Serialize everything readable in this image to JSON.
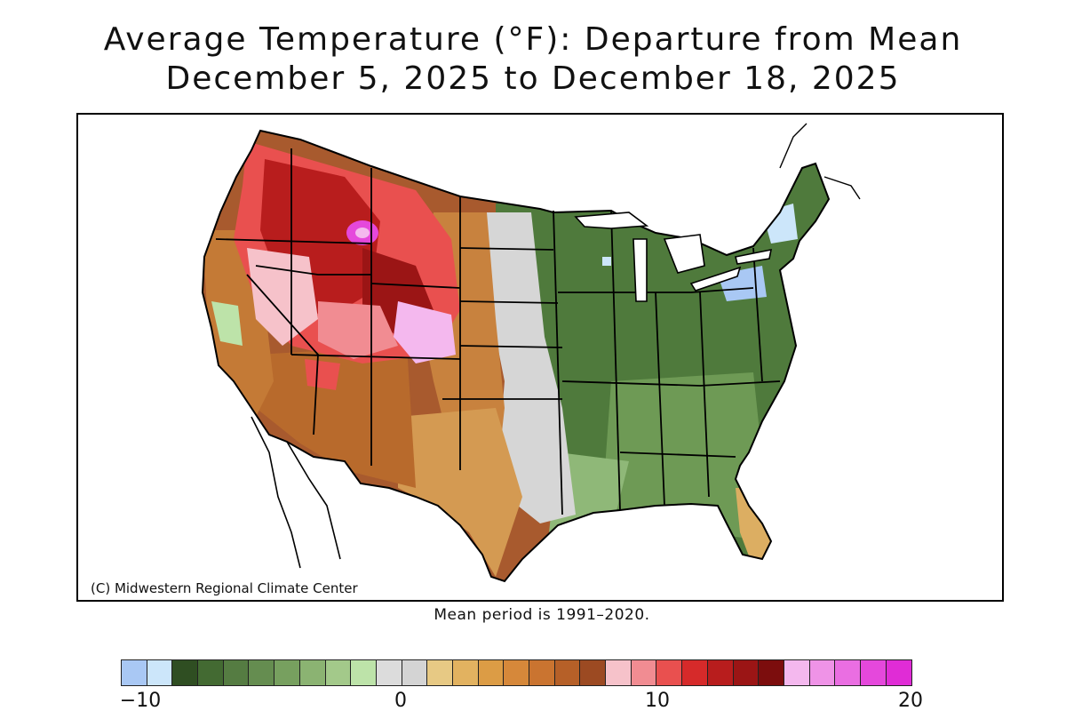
{
  "title": {
    "line1": "Average Temperature (°F): Departure from Mean",
    "line2": "December 5, 2025 to December 18, 2025"
  },
  "map": {
    "credit": "(C) Midwestern Regional Climate Center",
    "regions": [
      {
        "name": "northern-rockies-idaho-montana",
        "departure_f": 14
      },
      {
        "name": "yellowstone-hotspot",
        "departure_f": 19
      },
      {
        "name": "wyoming-core",
        "departure_f": 15
      },
      {
        "name": "utah-colorado",
        "departure_f": 11
      },
      {
        "name": "nevada-east",
        "departure_f": 10
      },
      {
        "name": "pacific-coast",
        "departure_f": 5
      },
      {
        "name": "desert-southwest",
        "departure_f": 6
      },
      {
        "name": "plains",
        "departure_f": 4
      },
      {
        "name": "texas",
        "departure_f": 3
      },
      {
        "name": "mississippi-valley",
        "departure_f": 0
      },
      {
        "name": "great-lakes-ohio-valley",
        "departure_f": -7
      },
      {
        "name": "southeast",
        "departure_f": -5
      },
      {
        "name": "northeast",
        "departure_f": -8
      },
      {
        "name": "lake-erie-ny",
        "departure_f": -10
      },
      {
        "name": "florida",
        "departure_f": 4
      }
    ]
  },
  "note": "Mean period is 1991–2020.",
  "legend": {
    "colors": [
      "#a9c8f4",
      "#cce6fa",
      "#2f4e22",
      "#436a32",
      "#557c42",
      "#658d50",
      "#77a05f",
      "#8bb372",
      "#a3c98a",
      "#bde3a9",
      "#dcdcdc",
      "#d4d4d4",
      "#e7c984",
      "#e2b260",
      "#dc9c45",
      "#d6883a",
      "#ca7430",
      "#b66028",
      "#9c4a22",
      "#f6c2ca",
      "#f18c92",
      "#e9504f",
      "#d62a2a",
      "#b81d1d",
      "#9b1515",
      "#7c0d0d",
      "#f4b8ee",
      "#ef93e7",
      "#ea6ee2",
      "#e548dc",
      "#e02cd6"
    ],
    "ticks": [
      "−10",
      "0",
      "10",
      "20"
    ]
  }
}
